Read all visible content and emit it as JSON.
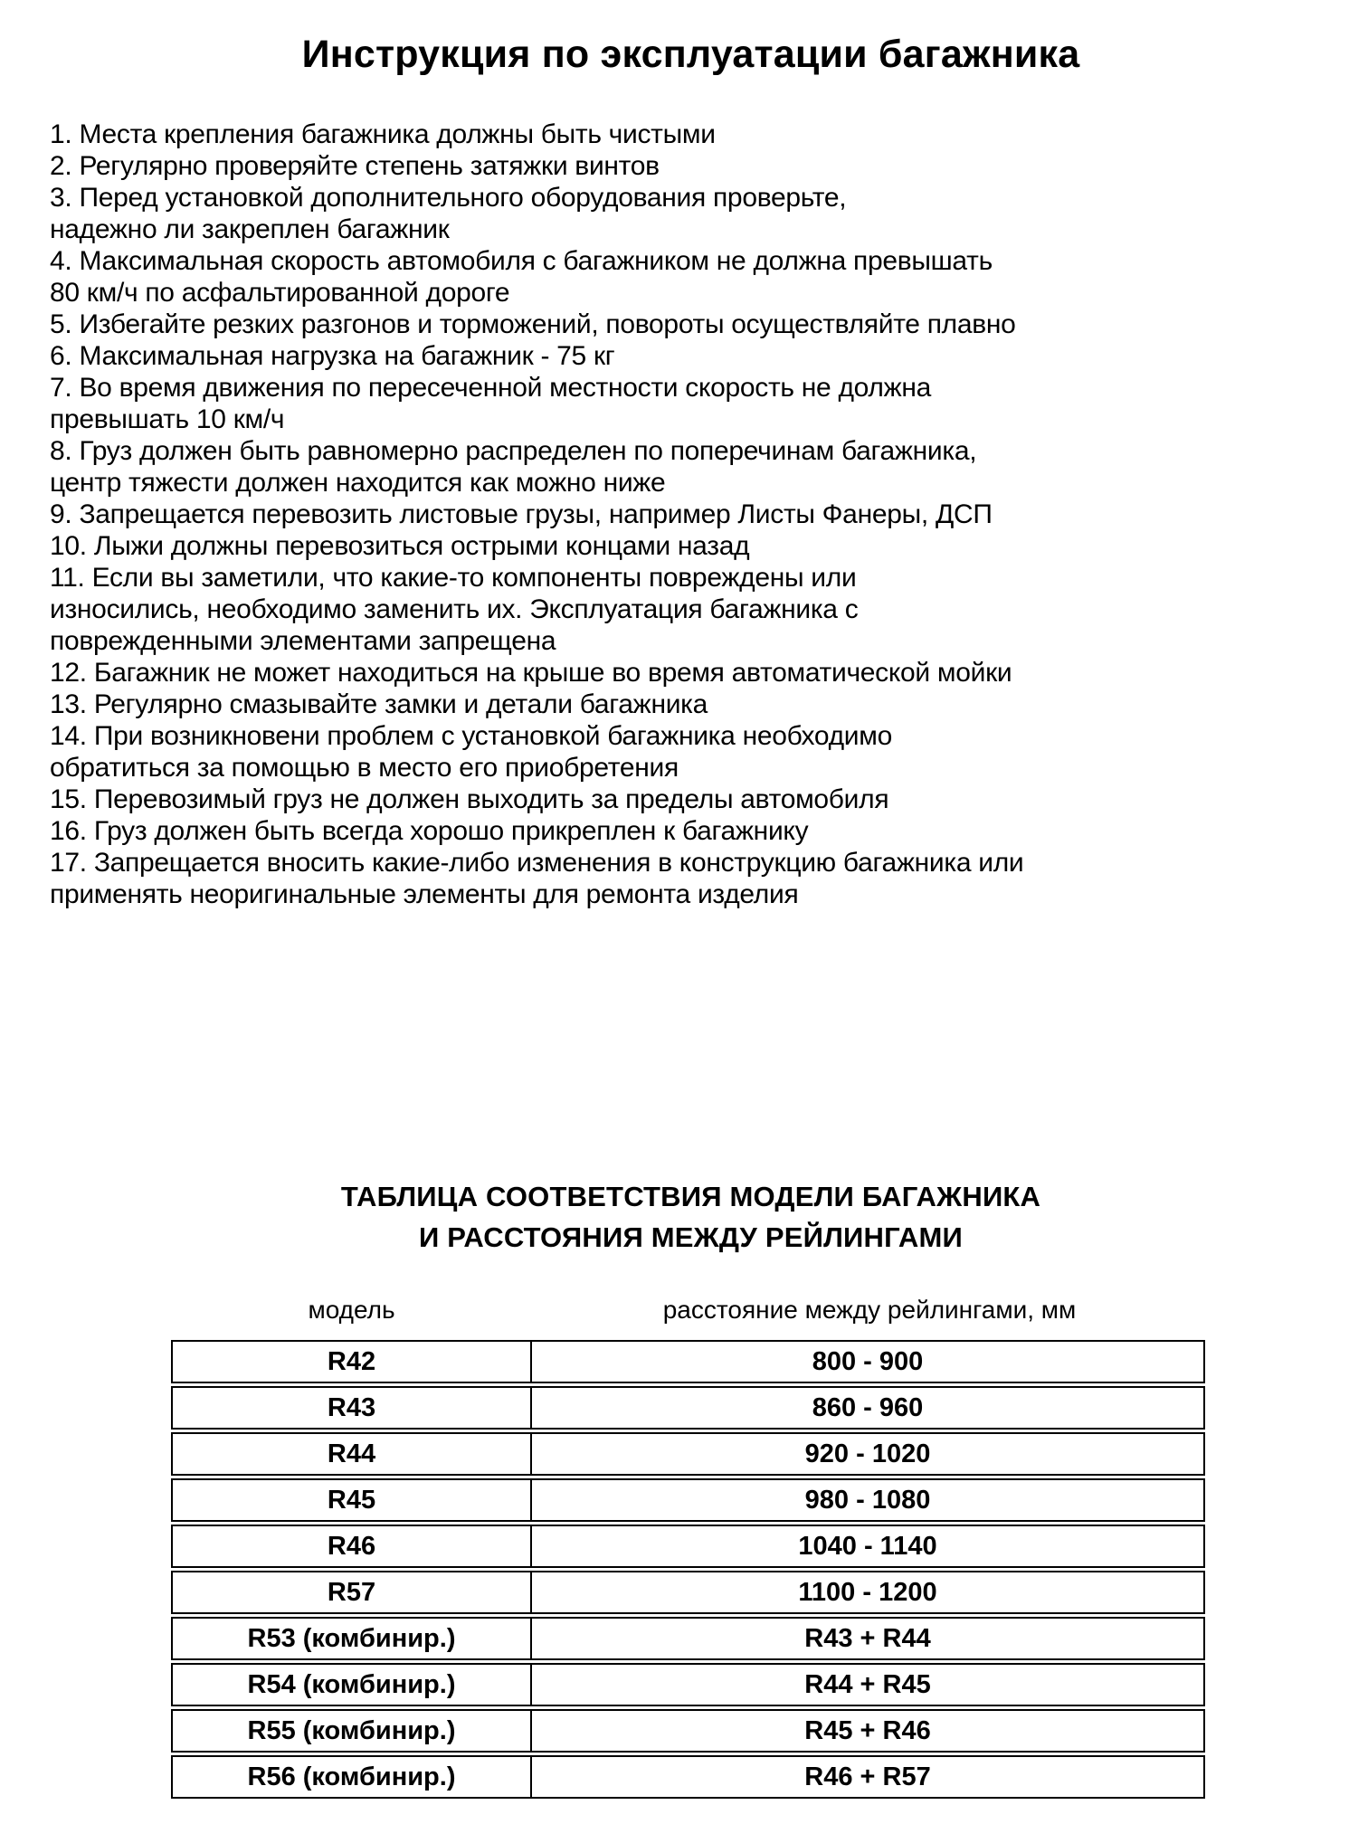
{
  "page": {
    "title": "Инструкция по эксплуатации багажника"
  },
  "instructions": {
    "items": [
      {
        "lines": [
          "1. Места крепления багажника должны быть чистыми"
        ]
      },
      {
        "lines": [
          "2. Регулярно проверяйте степень затяжки винтов"
        ]
      },
      {
        "lines": [
          "3. Перед установкой дополнительного оборудования проверьте,",
          "надежно ли закреплен багажник"
        ]
      },
      {
        "lines": [
          "4. Максимальная скорость автомобиля с багажником не должна превышать",
          "80 км/ч по асфальтированной дороге"
        ]
      },
      {
        "lines": [
          "5. Избегайте резких разгонов и торможений, повороты осуществляйте плавно"
        ]
      },
      {
        "lines": [
          "6. Максимальная нагрузка на багажник - 75 кг"
        ]
      },
      {
        "lines": [
          "7. Во время движения по пересеченной местности скорость не должна",
          "превышать 10 км/ч"
        ]
      },
      {
        "lines": [
          "8. Груз должен быть равномерно распределен по поперечинам багажника,",
          "центр тяжести должен находится как можно ниже"
        ]
      },
      {
        "lines": [
          "9. Запрещается перевозить листовые грузы, например Листы Фанеры, ДСП"
        ]
      },
      {
        "lines": [
          "10. Лыжи должны перевозиться острыми концами назад"
        ]
      },
      {
        "lines": [
          "11. Если вы заметили, что какие-то компоненты повреждены или",
          "износились, необходимо заменить их. Эксплуатация багажника с",
          "поврежденными элементами запрещена"
        ]
      },
      {
        "lines": [
          "12. Багажник не может находиться на крыше во время автоматической мойки"
        ]
      },
      {
        "lines": [
          "13. Регулярно смазывайте замки и детали багажника"
        ]
      },
      {
        "lines": [
          "14. При возникновени проблем с установкой багажника необходимо",
          "обратиться за помощью в место его приобретения"
        ]
      },
      {
        "lines": [
          "15. Перевозимый груз не должен выходить за пределы автомобиля"
        ]
      },
      {
        "lines": [
          "16. Груз должен быть всегда хорошо прикреплен к багажнику"
        ]
      },
      {
        "lines": [
          "17. Запрещается вносить какие-либо изменения в конструкцию багажника или",
          "применять неоригинальные элементы для ремонта изделия"
        ]
      }
    ]
  },
  "table_section": {
    "heading_lines": [
      "ТАБЛИЦА СООТВЕТСТВИЯ МОДЕЛИ БАГАЖНИКА",
      "И РАССТОЯНИЯ МЕЖДУ РЕЙЛИНГАМИ"
    ],
    "column_headers": {
      "model": "модель",
      "distance": "расстояние между рейлингами, мм"
    },
    "chart_data": {
      "type": "table",
      "columns": [
        "модель",
        "расстояние между рейлингами, мм"
      ],
      "rows": [
        {
          "model": "R42",
          "distance": "800 - 900"
        },
        {
          "model": "R43",
          "distance": "860 - 960"
        },
        {
          "model": "R44",
          "distance": "920 - 1020"
        },
        {
          "model": "R45",
          "distance": "980 - 1080"
        },
        {
          "model": "R46",
          "distance": "1040 - 1140"
        },
        {
          "model": "R57",
          "distance": "1100 - 1200"
        },
        {
          "model": "R53 (комбинир.)",
          "distance": "R43 + R44"
        },
        {
          "model": "R54 (комбинир.)",
          "distance": "R44 + R45"
        },
        {
          "model": "R55 (комбинир.)",
          "distance": "R45 + R46"
        },
        {
          "model": "R56 (комбинир.)",
          "distance": "R46 + R57"
        }
      ]
    }
  }
}
